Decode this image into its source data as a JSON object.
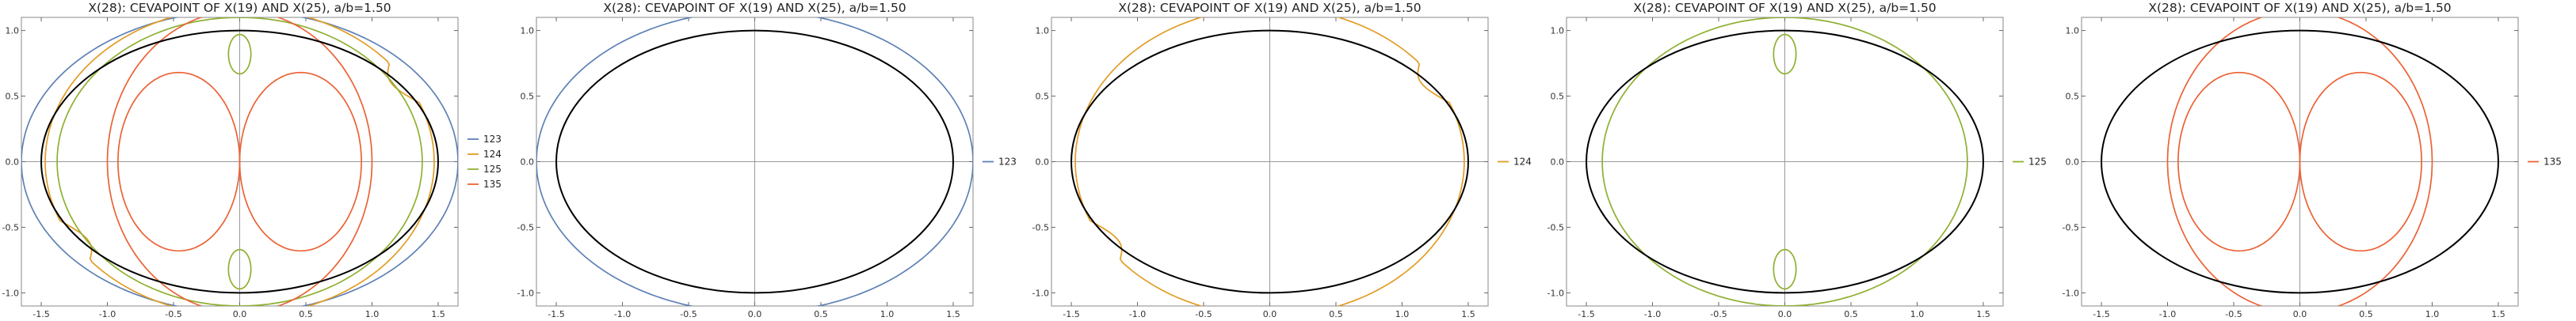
{
  "chart_data": [
    {
      "type": "line",
      "title": "X(28): CEVAPOINT OF X(19) AND X(25), a/b=1.50",
      "xlim": [
        -1.65,
        1.65
      ],
      "ylim": [
        -1.1,
        1.1
      ],
      "xticks": [
        "-1.5",
        "-1.0",
        "-0.5",
        "0.0",
        "0.5",
        "1.0",
        "1.5"
      ],
      "yticks": [
        "-1.0",
        "-0.5",
        "0.0",
        "0.5",
        "1.0"
      ],
      "grid": false,
      "legend": "right",
      "ellipse": {
        "a": 1.5,
        "b": 1.0,
        "color": "#000000"
      },
      "series": [
        {
          "name": "123",
          "color": "#5e81b5",
          "rx": 1.65,
          "ry": 1.15
        },
        {
          "name": "124",
          "color": "#e19c24",
          "rx": 1.47,
          "ry": 1.05
        },
        {
          "name": "125",
          "color": "#8fb032",
          "rx": 1.38,
          "ry": 1.1,
          "lobe_y": 0.82
        },
        {
          "name": "135",
          "color": "#eb6235",
          "rx": 1.0,
          "ry": 1.15
        }
      ]
    },
    {
      "type": "line",
      "title": "X(28): CEVAPOINT OF X(19) AND X(25), a/b=1.50",
      "xlim": [
        -1.65,
        1.65
      ],
      "ylim": [
        -1.1,
        1.1
      ],
      "xticks": [
        "-1.5",
        "-1.0",
        "-0.5",
        "0.0",
        "0.5",
        "1.0",
        "1.5"
      ],
      "yticks": [
        "-1.0",
        "-0.5",
        "0.0",
        "0.5",
        "1.0"
      ],
      "grid": false,
      "legend": "right",
      "ellipse": {
        "a": 1.5,
        "b": 1.0,
        "color": "#000000"
      },
      "series": [
        {
          "name": "123",
          "color": "#5e81b5",
          "rx": 1.65,
          "ry": 1.15
        }
      ]
    },
    {
      "type": "line",
      "title": "X(28): CEVAPOINT OF X(19) AND X(25), a/b=1.50",
      "xlim": [
        -1.65,
        1.65
      ],
      "ylim": [
        -1.1,
        1.1
      ],
      "xticks": [
        "-1.5",
        "-1.0",
        "-0.5",
        "0.0",
        "0.5",
        "1.0",
        "1.5"
      ],
      "yticks": [
        "-1.0",
        "-0.5",
        "0.0",
        "0.5",
        "1.0"
      ],
      "grid": false,
      "legend": "right",
      "ellipse": {
        "a": 1.5,
        "b": 1.0,
        "color": "#000000"
      },
      "series": [
        {
          "name": "124",
          "color": "#e19c24",
          "rx": 1.47,
          "ry": 1.05
        }
      ]
    },
    {
      "type": "line",
      "title": "X(28): CEVAPOINT OF X(19) AND X(25), a/b=1.50",
      "xlim": [
        -1.65,
        1.65
      ],
      "ylim": [
        -1.1,
        1.1
      ],
      "xticks": [
        "-1.5",
        "-1.0",
        "-0.5",
        "0.0",
        "0.5",
        "1.0",
        "1.5"
      ],
      "yticks": [
        "-1.0",
        "-0.5",
        "0.0",
        "0.5",
        "1.0"
      ],
      "grid": false,
      "legend": "right",
      "ellipse": {
        "a": 1.5,
        "b": 1.0,
        "color": "#000000"
      },
      "series": [
        {
          "name": "125",
          "color": "#8fb032",
          "rx": 1.38,
          "ry": 1.1,
          "lobe_y": 0.82
        }
      ]
    },
    {
      "type": "line",
      "title": "X(28): CEVAPOINT OF X(19) AND X(25), a/b=1.50",
      "xlim": [
        -1.65,
        1.65
      ],
      "ylim": [
        -1.1,
        1.1
      ],
      "xticks": [
        "-1.5",
        "-1.0",
        "-0.5",
        "0.0",
        "0.5",
        "1.0",
        "1.5"
      ],
      "yticks": [
        "-1.0",
        "-0.5",
        "0.0",
        "0.5",
        "1.0"
      ],
      "grid": false,
      "legend": "right",
      "ellipse": {
        "a": 1.5,
        "b": 1.0,
        "color": "#000000"
      },
      "series": [
        {
          "name": "135",
          "color": "#eb6235",
          "rx": 1.0,
          "ry": 1.15
        }
      ]
    }
  ]
}
